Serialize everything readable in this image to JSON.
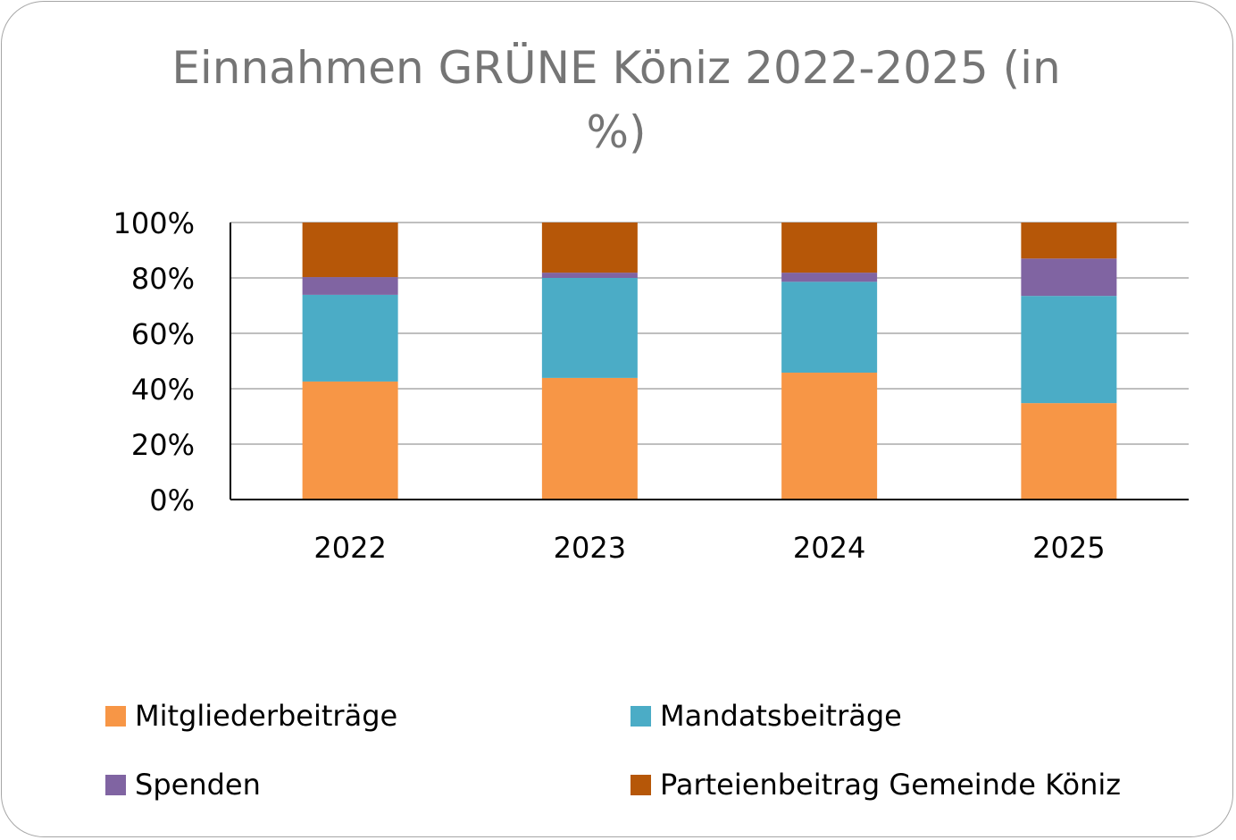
{
  "chart_data": {
    "type": "bar",
    "stacked": true,
    "title": "Einnahmen GRÜNE Köniz 2022-2025 (in %)",
    "title_lines": [
      "Einnahmen GRÜNE Köniz 2022-2025 (in",
      "%)"
    ],
    "xlabel": "",
    "ylabel": "",
    "ylim": [
      0,
      100
    ],
    "y_ticks": [
      "0%",
      "20%",
      "40%",
      "60%",
      "80%",
      "100%"
    ],
    "categories": [
      "2022",
      "2023",
      "2024",
      "2025"
    ],
    "grid": true,
    "legend_position": "bottom",
    "series": [
      {
        "name": "Mitgliederbeiträge",
        "color": "#f79646",
        "values": [
          42.6,
          43.9,
          45.8,
          34.8
        ]
      },
      {
        "name": "Mandatsbeiträge",
        "color": "#4bacc6",
        "values": [
          31.3,
          36.1,
          32.8,
          38.7
        ]
      },
      {
        "name": "Spenden",
        "color": "#8064a2",
        "values": [
          6.4,
          1.9,
          3.3,
          13.5
        ]
      },
      {
        "name": "Parteienbeitrag Gemeinde Köniz",
        "color": "#b65708",
        "values": [
          19.7,
          18.1,
          18.1,
          13.0
        ]
      }
    ]
  }
}
